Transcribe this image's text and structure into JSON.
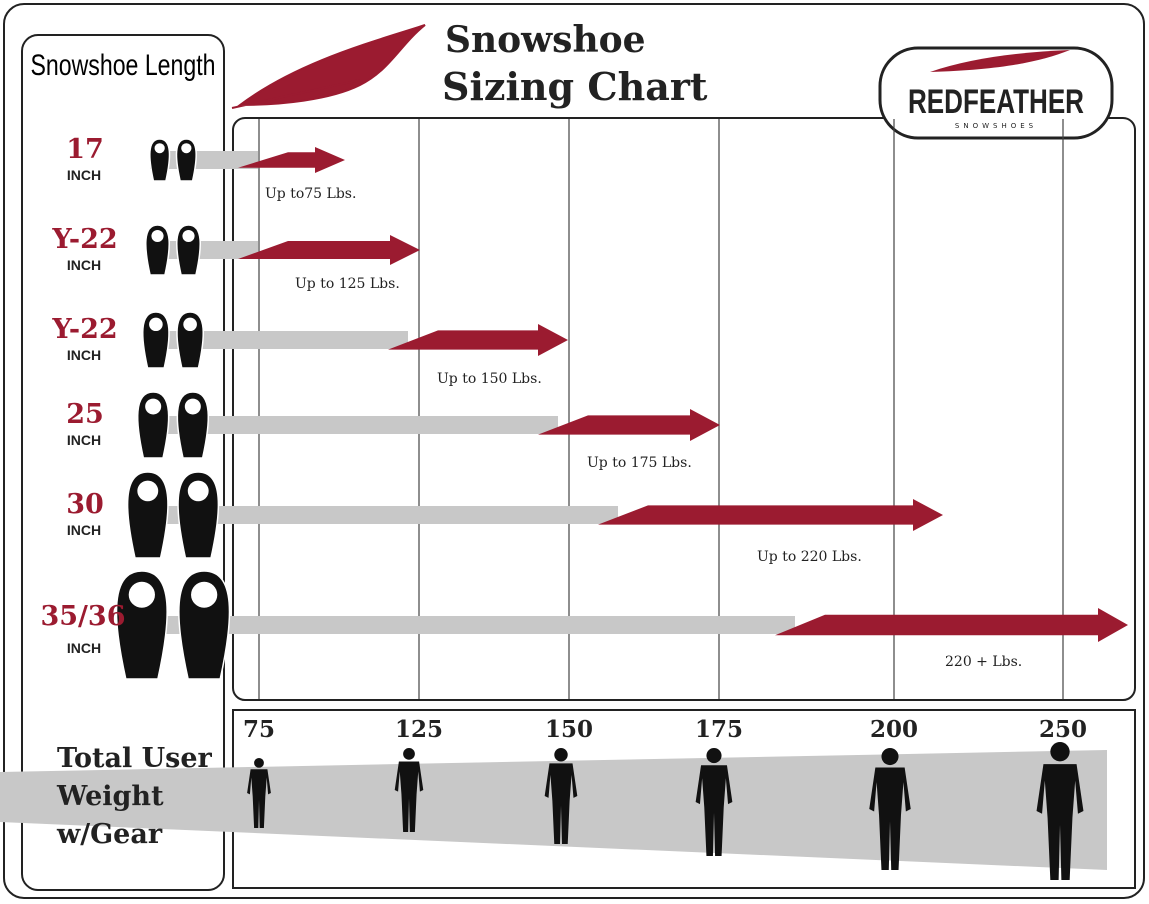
{
  "header": {
    "title_line1": "Snowshoe",
    "title_line2": "Sizing Chart",
    "logo": "REDFEATHER",
    "logo_sub": "SNOWSHOES"
  },
  "left_heading": "Snowshoe Length",
  "rows": [
    {
      "size": "17",
      "unit": "INCH",
      "label": "Up to75 Lbs."
    },
    {
      "size": "Y-22",
      "unit": "INCH",
      "label": "Up to 125 Lbs."
    },
    {
      "size": "Y-22",
      "unit": "INCH",
      "label": "Up to 150 Lbs."
    },
    {
      "size": "25",
      "unit": "INCH",
      "label": "Up to 175 Lbs."
    },
    {
      "size": "30",
      "unit": "INCH",
      "label": "Up to 220 Lbs."
    },
    {
      "size": "35/36",
      "unit": "INCH",
      "label": "220 + Lbs."
    }
  ],
  "weights": [
    "75",
    "125",
    "150",
    "175",
    "200",
    "250"
  ],
  "weight_heading": [
    "Total User",
    "Weight",
    "w/Gear"
  ]
}
